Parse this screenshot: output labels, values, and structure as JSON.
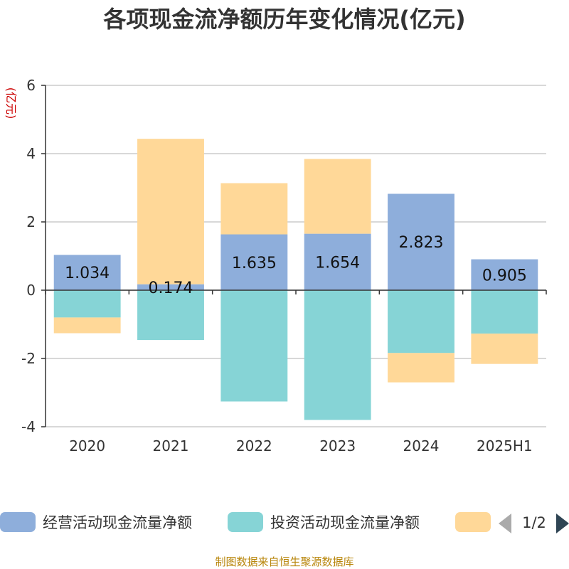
{
  "chart_data": {
    "type": "bar",
    "stacked": true,
    "title": "各项现金流净额历年变化情况(亿元)",
    "ylabel": "(亿元)",
    "ylim": [
      -4,
      6
    ],
    "yticks": [
      "6",
      "4",
      "2",
      "0",
      "-2",
      "-4"
    ],
    "categories": [
      "2020",
      "2021",
      "2022",
      "2023",
      "2024",
      "2025H1"
    ],
    "series": [
      {
        "name": "经营活动现金流量净额",
        "color": "#8eaedb",
        "values": [
          1.034,
          0.174,
          1.635,
          1.654,
          2.823,
          0.905
        ],
        "labels": [
          "1.034",
          "0.174",
          "1.635",
          "1.654",
          "2.823",
          "0.905"
        ]
      },
      {
        "name": "投资活动现金流量净额",
        "color": "#86d4d6",
        "values": [
          -0.8,
          -1.46,
          -3.26,
          -3.8,
          -1.84,
          -1.27
        ]
      },
      {
        "name": "",
        "color": "#ffd898",
        "values": [
          -0.46,
          4.26,
          1.5,
          2.19,
          -0.86,
          -0.89
        ]
      }
    ],
    "grid": true,
    "legend_position": "bottom",
    "legend_page": "1/2"
  },
  "source_text": "制图数据来自恒生聚源数据库"
}
